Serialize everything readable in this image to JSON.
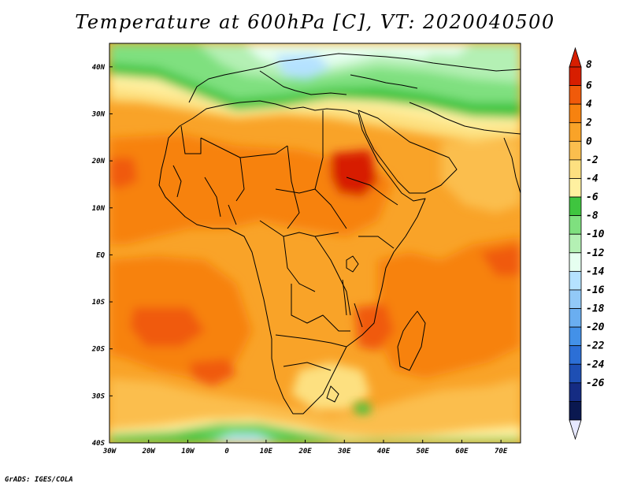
{
  "map": {
    "title": "Temperature at 600hPa [C], VT: 2020040500",
    "credit": "GrADS: IGES/COLA",
    "lon_ticks": [
      "30W",
      "20W",
      "10W",
      "0",
      "10E",
      "20E",
      "30E",
      "40E",
      "50E",
      "60E",
      "70E"
    ],
    "lat_ticks": [
      "40N",
      "30N",
      "20N",
      "10N",
      "EQ",
      "10S",
      "20S",
      "30S",
      "40S"
    ],
    "lon_range": [
      -30,
      75
    ],
    "lat_range": [
      -40,
      45
    ],
    "variable": "Temperature",
    "level": "600hPa",
    "units": "C",
    "valid_time": "2020040500"
  },
  "colorbar": {
    "labels": [
      "8",
      "6",
      "4",
      "2",
      "0",
      "-2",
      "-4",
      "-6",
      "-8",
      "-10",
      "-12",
      "-14",
      "-16",
      "-18",
      "-20",
      "-22",
      "-24",
      "-26"
    ],
    "colors": [
      "#d71e00",
      "#f05a0a",
      "#f7820f",
      "#f9a328",
      "#fbbe4e",
      "#fde080",
      "#fff0a0",
      "#3fc53f",
      "#7fe07f",
      "#b4f0b4",
      "#e6fff0",
      "#b5e2ff",
      "#92c9f7",
      "#6aaef0",
      "#4391e8",
      "#2c6fd6",
      "#1e4fb4",
      "#152c83",
      "#0a1850"
    ],
    "top_arrow_color": "#d71e00",
    "bottom_arrow_color": "#e6e8ff"
  }
}
